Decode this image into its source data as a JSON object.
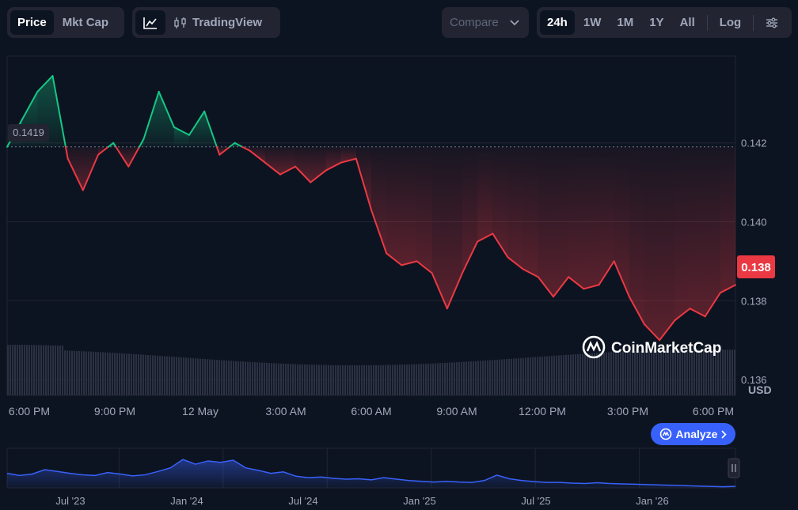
{
  "toolbar": {
    "price_label": "Price",
    "mktcap_label": "Mkt Cap",
    "tradingview_label": "TradingView",
    "compare_label": "Compare",
    "range_24h": "24h",
    "range_1w": "1W",
    "range_1m": "1M",
    "range_1y": "1Y",
    "range_all": "All",
    "log_label": "Log"
  },
  "watermark": "CoinMarketCap",
  "analyze_label": "Analyze",
  "colors": {
    "up": "#16c784",
    "down": "#ea3943",
    "accent": "#3861fb"
  },
  "chart_data": [
    {
      "type": "line",
      "ylabel": "USD",
      "ylim": [
        0.1356,
        0.1442
      ],
      "yticks": [
        "0.142",
        "0.140",
        "0.138",
        "0.136"
      ],
      "xticks": [
        "6:00 PM",
        "9:00 PM",
        "12 May",
        "3:00 AM",
        "6:00 AM",
        "9:00 AM",
        "12:00 PM",
        "3:00 PM",
        "6:00 PM"
      ],
      "baseline": 0.1419,
      "baseline_label": "0.1419",
      "current_label": "0.138",
      "x_hours": [
        0,
        0.5,
        1,
        1.5,
        2,
        2.5,
        3,
        3.5,
        4,
        4.5,
        5,
        5.5,
        6,
        6.5,
        7,
        7.5,
        8,
        8.5,
        9,
        9.5,
        10,
        10.5,
        11,
        11.5,
        12,
        12.5,
        13,
        13.5,
        14,
        14.5,
        15,
        15.5,
        16,
        16.5,
        17,
        17.5,
        18,
        18.5,
        19,
        19.5,
        20,
        20.5,
        21,
        21.5,
        22,
        22.5,
        23,
        23.5,
        24
      ],
      "values": [
        0.1419,
        0.1426,
        0.1433,
        0.1437,
        0.1416,
        0.1408,
        0.1417,
        0.142,
        0.1414,
        0.1421,
        0.1433,
        0.1424,
        0.1422,
        0.1428,
        0.1417,
        0.142,
        0.1418,
        0.1415,
        0.1412,
        0.1414,
        0.141,
        0.1413,
        0.1415,
        0.1416,
        0.1403,
        0.1392,
        0.1389,
        0.139,
        0.1387,
        0.1378,
        0.1387,
        0.1395,
        0.1397,
        0.1391,
        0.1388,
        0.1386,
        0.1381,
        0.1386,
        0.1383,
        0.1384,
        0.139,
        0.1381,
        0.1374,
        0.137,
        0.1375,
        0.1378,
        0.1376,
        0.1382,
        0.1384
      ]
    },
    {
      "type": "area",
      "xticks": [
        "Jul '23",
        "Jan '24",
        "Jul '24",
        "Jan '25",
        "Jul '25",
        "Jan '26"
      ],
      "values": [
        0.4,
        0.34,
        0.38,
        0.5,
        0.45,
        0.4,
        0.36,
        0.34,
        0.42,
        0.38,
        0.33,
        0.36,
        0.45,
        0.55,
        0.78,
        0.65,
        0.74,
        0.7,
        0.76,
        0.55,
        0.48,
        0.4,
        0.44,
        0.32,
        0.28,
        0.3,
        0.26,
        0.24,
        0.25,
        0.22,
        0.28,
        0.24,
        0.2,
        0.18,
        0.16,
        0.18,
        0.16,
        0.15,
        0.2,
        0.35,
        0.25,
        0.2,
        0.17,
        0.15,
        0.15,
        0.13,
        0.12,
        0.14,
        0.12,
        0.11,
        0.1,
        0.09,
        0.08,
        0.07,
        0.06,
        0.05,
        0.04,
        0.03,
        0.04
      ]
    }
  ]
}
